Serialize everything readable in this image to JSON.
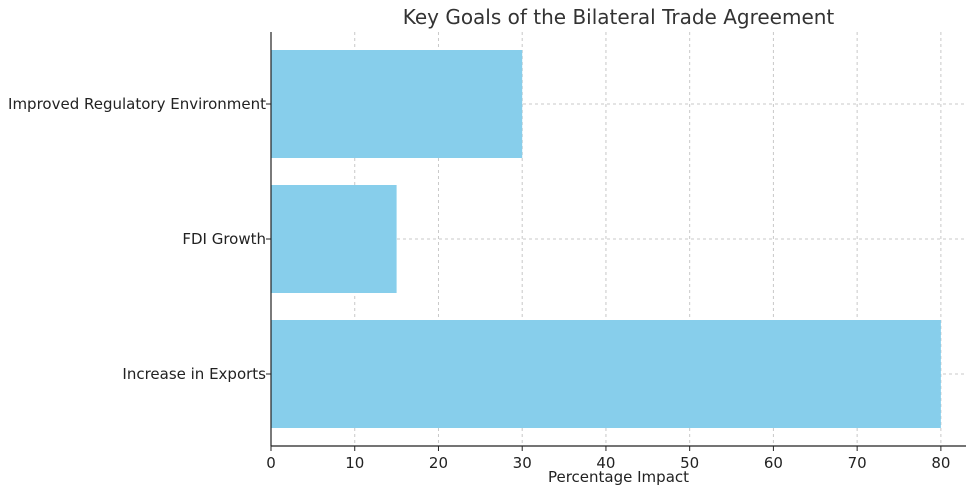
{
  "chart_data": {
    "type": "bar",
    "orientation": "horizontal",
    "title": "Key Goals of the Bilateral Trade Agreement",
    "xlabel": "Percentage Impact",
    "ylabel": "",
    "categories": [
      "Increase in Exports",
      "FDI Growth",
      "Improved Regulatory Environment"
    ],
    "values": [
      80,
      15,
      30
    ],
    "xlim": [
      0,
      83
    ],
    "xticks": [
      0,
      10,
      20,
      30,
      40,
      50,
      60,
      70,
      80
    ],
    "grid": true,
    "bar_color": "#87CEEB"
  }
}
